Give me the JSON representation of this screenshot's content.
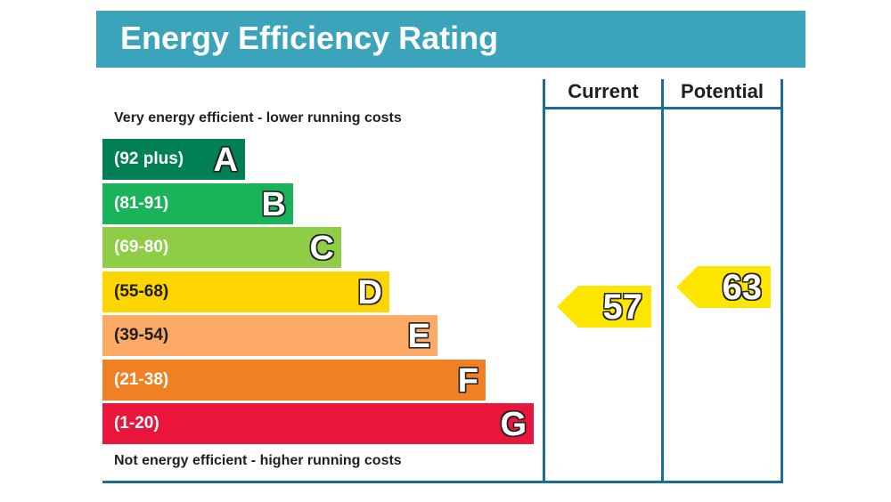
{
  "header": {
    "title": "Energy Efficiency Rating"
  },
  "captions": {
    "top": "Very energy efficient - lower running costs",
    "bottom": "Not energy efficient - higher running costs"
  },
  "columns": {
    "current": "Current",
    "potential": "Potential"
  },
  "chart_data": {
    "type": "bar",
    "title": "Energy Efficiency Rating",
    "bands": [
      {
        "letter": "A",
        "range": "(92 plus)",
        "min": 92,
        "max": 100,
        "color": "#008054"
      },
      {
        "letter": "B",
        "range": "(81-91)",
        "min": 81,
        "max": 91,
        "color": "#19b459"
      },
      {
        "letter": "C",
        "range": "(69-80)",
        "min": 69,
        "max": 80,
        "color": "#8dce46"
      },
      {
        "letter": "D",
        "range": "(55-68)",
        "min": 55,
        "max": 68,
        "color": "#ffd500"
      },
      {
        "letter": "E",
        "range": "(39-54)",
        "min": 39,
        "max": 54,
        "color": "#fcaa65"
      },
      {
        "letter": "F",
        "range": "(21-38)",
        "min": 21,
        "max": 38,
        "color": "#ef8023"
      },
      {
        "letter": "G",
        "range": "(1-20)",
        "min": 1,
        "max": 20,
        "color": "#e9153b"
      }
    ],
    "current": {
      "value": "57",
      "band": "D",
      "color": "#ffe600"
    },
    "potential": {
      "value": "63",
      "band": "D",
      "color": "#ffe600"
    }
  }
}
